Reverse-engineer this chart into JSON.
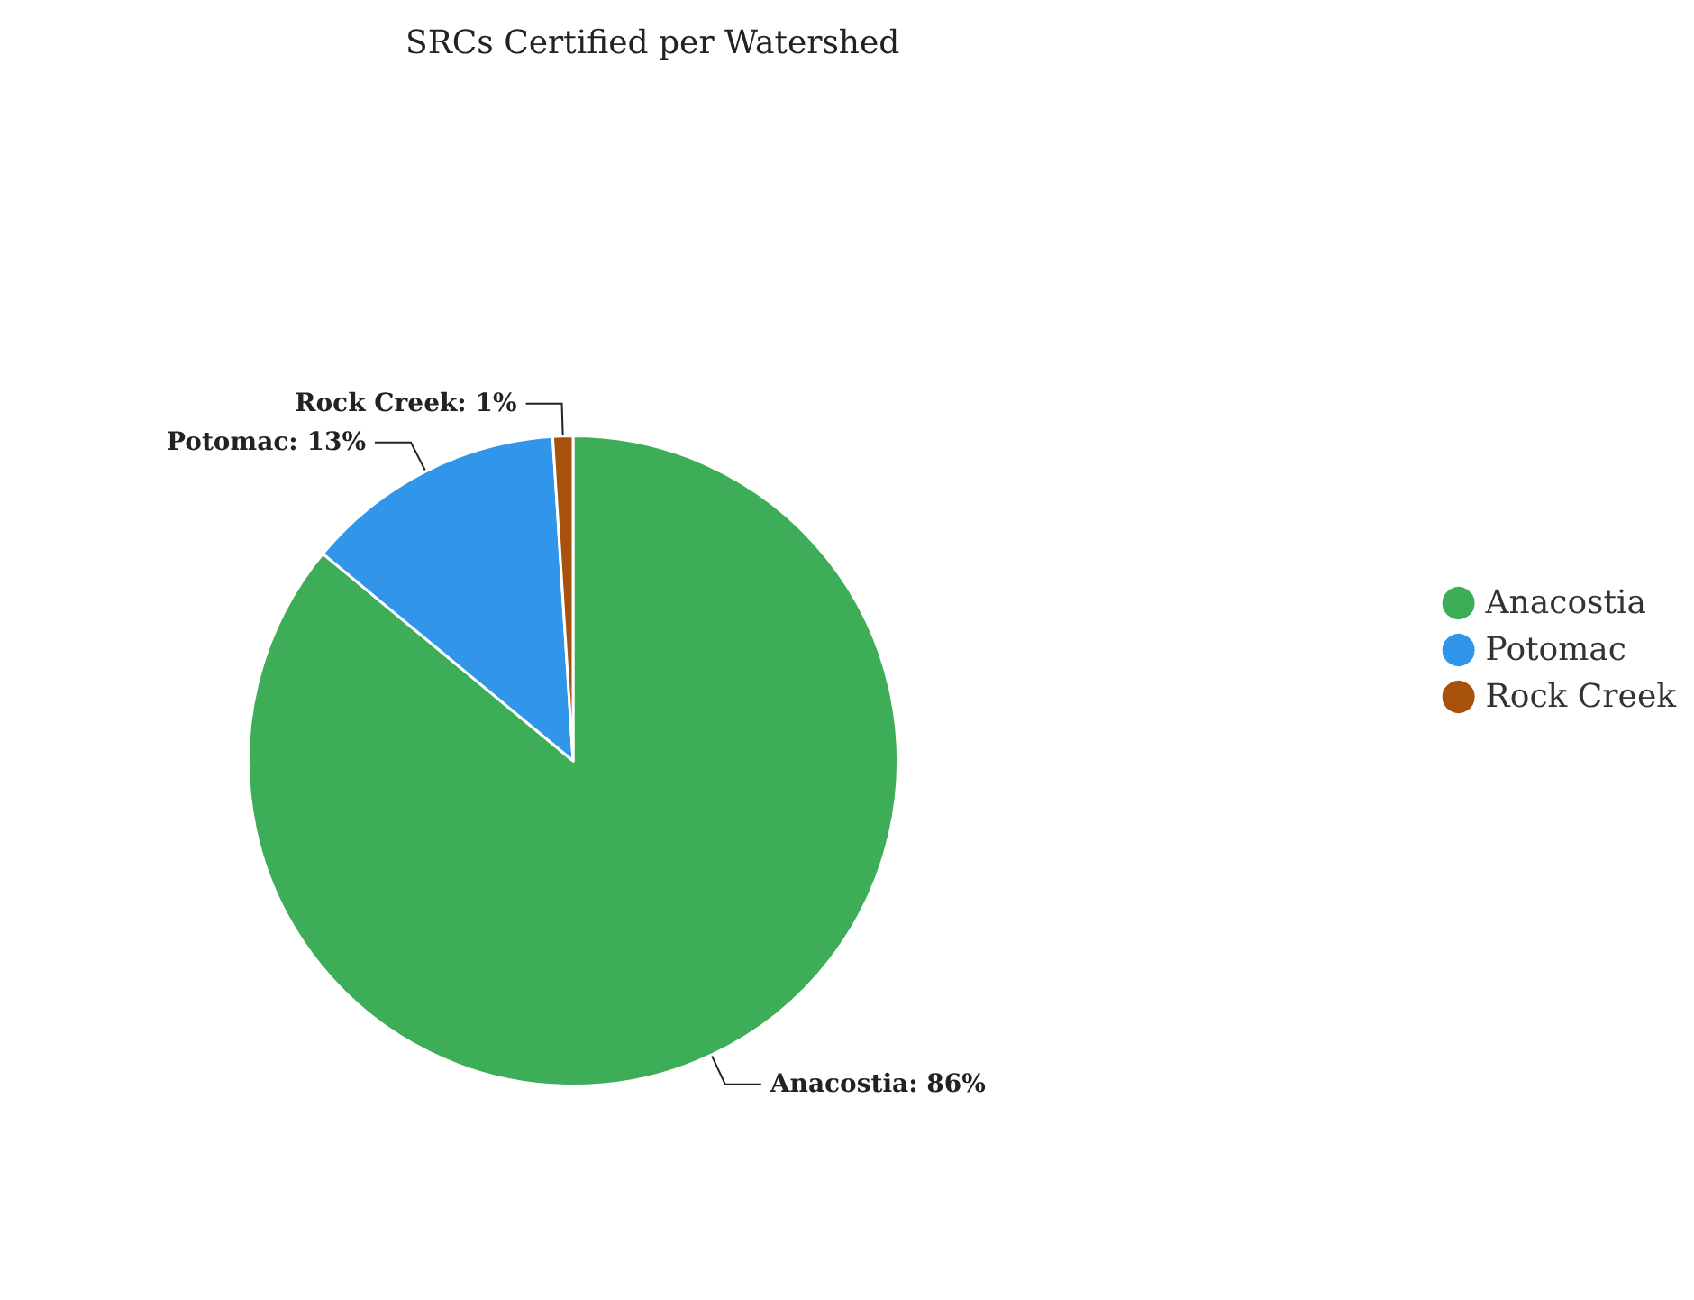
{
  "chart_data": {
    "type": "pie",
    "title": "SRCs Certified per Watershed",
    "categories": [
      "Anacostia",
      "Potomac",
      "Rock Creek"
    ],
    "values": [
      86,
      13,
      1
    ],
    "colors": [
      "#3dae57",
      "#3196ea",
      "#a6520c"
    ],
    "value_labels": [
      "Anacostia: 86%",
      "Potomac: 13%",
      "Rock Creek: 1%"
    ],
    "legend": "right"
  }
}
